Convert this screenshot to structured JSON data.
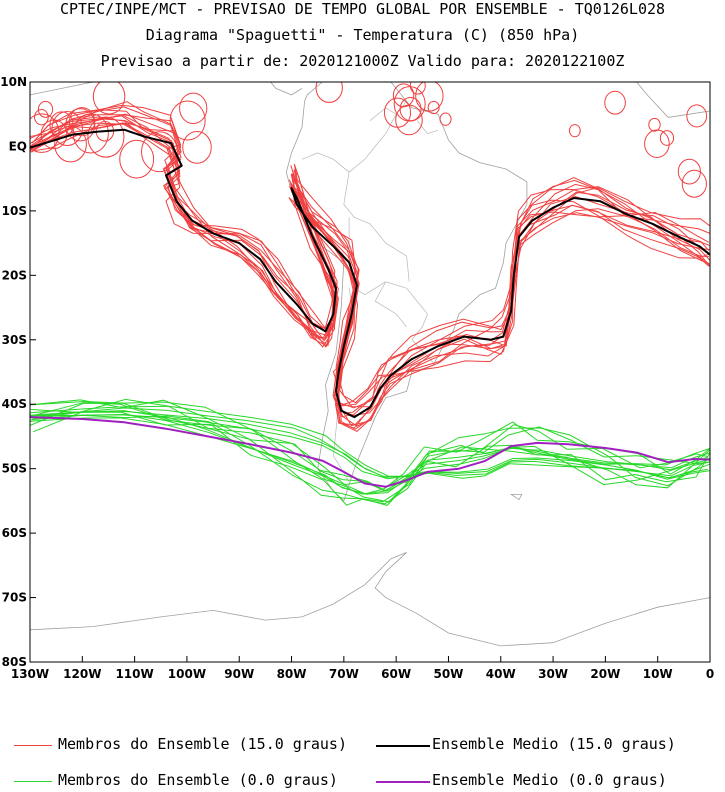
{
  "header": {
    "line1": "CPTEC/INPE/MCT - PREVISAO DE TEMPO GLOBAL POR ENSEMBLE - TQ0126L028",
    "line2": "Diagrama \"Spaguetti\" - Temperatura (C) (850 hPa)",
    "line3": "Previsao a partir de: 2020121000Z  Valido para: 2020122100Z"
  },
  "chart_data": {
    "type": "line",
    "title": "Diagrama \"Spaguetti\" - Temperatura (C) (850 hPa)",
    "xlabel": "",
    "ylabel": "",
    "xlim": [
      -130,
      0
    ],
    "ylim": [
      -80,
      10
    ],
    "x_ticks": [
      {
        "value": -130,
        "label": "130W"
      },
      {
        "value": -120,
        "label": "120W"
      },
      {
        "value": -110,
        "label": "110W"
      },
      {
        "value": -100,
        "label": "100W"
      },
      {
        "value": -90,
        "label": "90W"
      },
      {
        "value": -80,
        "label": "80W"
      },
      {
        "value": -70,
        "label": "70W"
      },
      {
        "value": -60,
        "label": "60W"
      },
      {
        "value": -50,
        "label": "50W"
      },
      {
        "value": -40,
        "label": "40W"
      },
      {
        "value": -30,
        "label": "30W"
      },
      {
        "value": -20,
        "label": "20W"
      },
      {
        "value": -10,
        "label": "10W"
      },
      {
        "value": 0,
        "label": "0"
      }
    ],
    "y_ticks": [
      {
        "value": 10,
        "label": "10N"
      },
      {
        "value": 0,
        "label": "EQ"
      },
      {
        "value": -10,
        "label": "10S"
      },
      {
        "value": -20,
        "label": "20S"
      },
      {
        "value": -30,
        "label": "30S"
      },
      {
        "value": -40,
        "label": "40S"
      },
      {
        "value": -50,
        "label": "50S"
      },
      {
        "value": -60,
        "label": "60S"
      },
      {
        "value": -70,
        "label": "70S"
      },
      {
        "value": -80,
        "label": "80S"
      }
    ],
    "series": [
      {
        "name": "Ensemble Medio (15.0 graus)",
        "color": "#000000",
        "points": [
          [
            -130,
            -0.2
          ],
          [
            -126,
            0.8
          ],
          [
            -122,
            1.8
          ],
          [
            -117,
            2.3
          ],
          [
            -112,
            2.6
          ],
          [
            -108,
            1.5
          ],
          [
            -103,
            0.5
          ],
          [
            -101,
            -3.0
          ],
          [
            -104,
            -4.5
          ],
          [
            -102,
            -8.5
          ],
          [
            -99,
            -11.5
          ],
          [
            -95,
            -13.5
          ],
          [
            -90,
            -15.0
          ],
          [
            -86,
            -17.5
          ],
          [
            -83,
            -21.0
          ],
          [
            -79,
            -24.5
          ],
          [
            -76,
            -27.5
          ],
          [
            -73.5,
            -28.7
          ],
          [
            -72,
            -26.0
          ],
          [
            -71.5,
            -22.0
          ],
          [
            -73,
            -19.0
          ],
          [
            -76,
            -14.0
          ],
          [
            -79,
            -8.0
          ],
          [
            -80,
            -6.5
          ],
          [
            -79,
            -9.0
          ],
          [
            -76,
            -12.5
          ],
          [
            -72,
            -15.5
          ],
          [
            -69,
            -18.0
          ],
          [
            -67.5,
            -21.5
          ],
          [
            -68.5,
            -26.0
          ],
          [
            -70,
            -31.0
          ],
          [
            -71,
            -35.0
          ],
          [
            -71.5,
            -38.0
          ],
          [
            -70.5,
            -41.0
          ],
          [
            -68,
            -42.0
          ],
          [
            -65,
            -40.5
          ],
          [
            -63,
            -37.5
          ],
          [
            -61,
            -35.5
          ],
          [
            -57,
            -33.0
          ],
          [
            -52,
            -31.0
          ],
          [
            -47,
            -29.5
          ],
          [
            -42,
            -30.0
          ],
          [
            -39.5,
            -29.5
          ],
          [
            -38,
            -25.5
          ],
          [
            -37.5,
            -20.0
          ],
          [
            -36.5,
            -14.0
          ],
          [
            -34,
            -11.5
          ],
          [
            -30,
            -9.5
          ],
          [
            -26,
            -8.0
          ],
          [
            -21,
            -8.5
          ],
          [
            -16,
            -10.5
          ],
          [
            -11,
            -12.0
          ],
          [
            -6,
            -14.0
          ],
          [
            -2,
            -15.5
          ],
          [
            0,
            -16.8
          ]
        ]
      },
      {
        "name": "Ensemble Medio (0.0 graus)",
        "color": "#a020c0",
        "points": [
          [
            -130,
            -42.0
          ],
          [
            -120,
            -42.3
          ],
          [
            -112,
            -42.8
          ],
          [
            -104,
            -43.8
          ],
          [
            -96,
            -45.0
          ],
          [
            -88,
            -46.2
          ],
          [
            -80,
            -47.5
          ],
          [
            -74,
            -48.8
          ],
          [
            -70,
            -50.5
          ],
          [
            -66,
            -52.3
          ],
          [
            -62,
            -52.8
          ],
          [
            -58,
            -51.8
          ],
          [
            -54,
            -50.5
          ],
          [
            -48,
            -50.0
          ],
          [
            -43,
            -48.8
          ],
          [
            -38,
            -46.5
          ],
          [
            -33,
            -46.0
          ],
          [
            -27,
            -46.2
          ],
          [
            -20,
            -46.8
          ],
          [
            -14,
            -47.5
          ],
          [
            -8,
            -49.0
          ],
          [
            -3,
            -48.5
          ],
          [
            0,
            -48.6
          ]
        ]
      }
    ],
    "ensemble_members": [
      {
        "name": "Membros do Ensemble (15.0 graus)",
        "color": "#f04040",
        "count": 14
      },
      {
        "name": "Membros do Ensemble (0.0 graus)",
        "color": "#28d828",
        "count": 14
      }
    ],
    "legend_position": "bottom"
  },
  "legend": {
    "members_15": "Membros do Ensemble (15.0 graus)",
    "mean_15": "Ensemble Medio (15.0 graus)",
    "members_0": "Membros do Ensemble (0.0 graus)",
    "mean_0": "Ensemble Medio (0.0 graus)"
  },
  "colors": {
    "members_15": "#f04040",
    "mean_15": "#000000",
    "members_0": "#28d828",
    "mean_0": "#a020c0",
    "coast": "#a0a0a0"
  }
}
